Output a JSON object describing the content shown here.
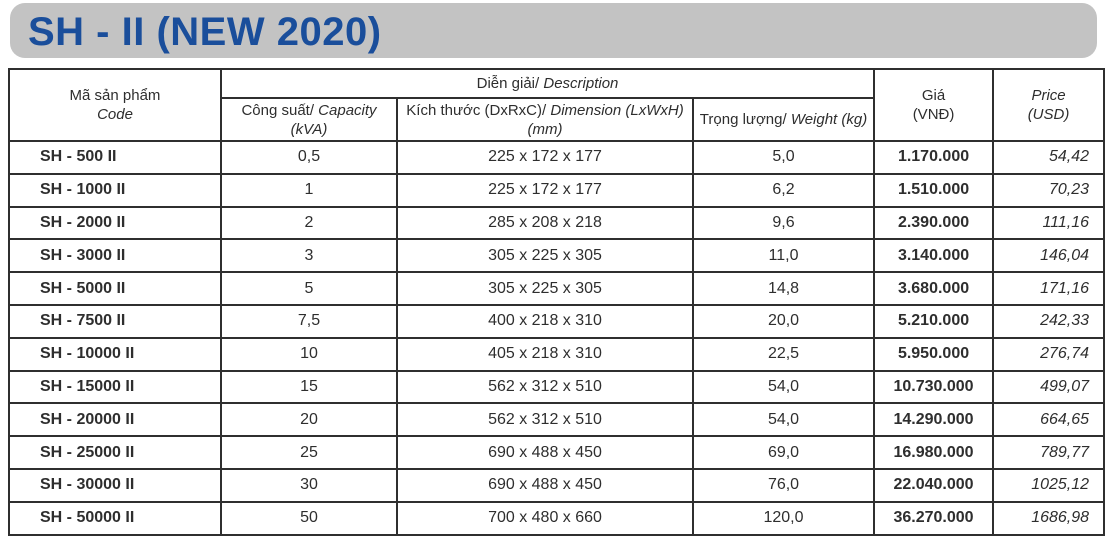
{
  "page": {
    "title": "SH - II (NEW 2020)"
  },
  "colors": {
    "title_blue": "#1a4e9b",
    "banner_gray": "#c3c3c3",
    "border_dark": "#2f2f2f",
    "text_dark": "#2e2e2e"
  },
  "table": {
    "headers": {
      "code_vn": "Mã sản phẩm",
      "code_en": "Code",
      "description_vn": "Diễn giải/",
      "description_en": "Description",
      "capacity_vn": "Công suất/",
      "capacity_en": "Capacity",
      "capacity_unit": "(kVA)",
      "dimension_vn": "Kích thước (DxRxC)/",
      "dimension_en": "Dimension (LxWxH)",
      "dimension_unit": "(mm)",
      "weight_vn": "Trọng lượng/",
      "weight_en": "Weight (kg)",
      "price_vnd_line1": "Giá",
      "price_vnd_line2": "(VNĐ)",
      "price_usd_line1": "Price",
      "price_usd_line2": "(USD)"
    },
    "rows": [
      {
        "code": "SH - 500 II",
        "capacity": "0,5",
        "dimension": "225 x 172 x 177",
        "weight": "5,0",
        "price_vnd": "1.170.000",
        "price_usd": "54,42"
      },
      {
        "code": "SH - 1000 II",
        "capacity": "1",
        "dimension": "225 x 172 x 177",
        "weight": "6,2",
        "price_vnd": "1.510.000",
        "price_usd": "70,23"
      },
      {
        "code": "SH - 2000 II",
        "capacity": "2",
        "dimension": "285 x 208 x 218",
        "weight": "9,6",
        "price_vnd": "2.390.000",
        "price_usd": "111,16"
      },
      {
        "code": "SH - 3000 II",
        "capacity": "3",
        "dimension": "305 x 225 x 305",
        "weight": "11,0",
        "price_vnd": "3.140.000",
        "price_usd": "146,04"
      },
      {
        "code": "SH - 5000 II",
        "capacity": "5",
        "dimension": "305 x 225 x 305",
        "weight": "14,8",
        "price_vnd": "3.680.000",
        "price_usd": "171,16"
      },
      {
        "code": "SH - 7500 II",
        "capacity": "7,5",
        "dimension": "400 x 218 x 310",
        "weight": "20,0",
        "price_vnd": "5.210.000",
        "price_usd": "242,33"
      },
      {
        "code": "SH - 10000 II",
        "capacity": "10",
        "dimension": "405 x 218 x 310",
        "weight": "22,5",
        "price_vnd": "5.950.000",
        "price_usd": "276,74"
      },
      {
        "code": "SH - 15000 II",
        "capacity": "15",
        "dimension": "562 x 312 x 510",
        "weight": "54,0",
        "price_vnd": "10.730.000",
        "price_usd": "499,07"
      },
      {
        "code": "SH - 20000 II",
        "capacity": "20",
        "dimension": "562 x 312 x 510",
        "weight": "54,0",
        "price_vnd": "14.290.000",
        "price_usd": "664,65"
      },
      {
        "code": "SH - 25000 II",
        "capacity": "25",
        "dimension": "690 x 488 x 450",
        "weight": "69,0",
        "price_vnd": "16.980.000",
        "price_usd": "789,77"
      },
      {
        "code": "SH - 30000 II",
        "capacity": "30",
        "dimension": "690 x 488 x 450",
        "weight": "76,0",
        "price_vnd": "22.040.000",
        "price_usd": "1025,12"
      },
      {
        "code": "SH - 50000 II",
        "capacity": "50",
        "dimension": "700 x 480 x 660",
        "weight": "120,0",
        "price_vnd": "36.270.000",
        "price_usd": "1686,98"
      }
    ]
  }
}
